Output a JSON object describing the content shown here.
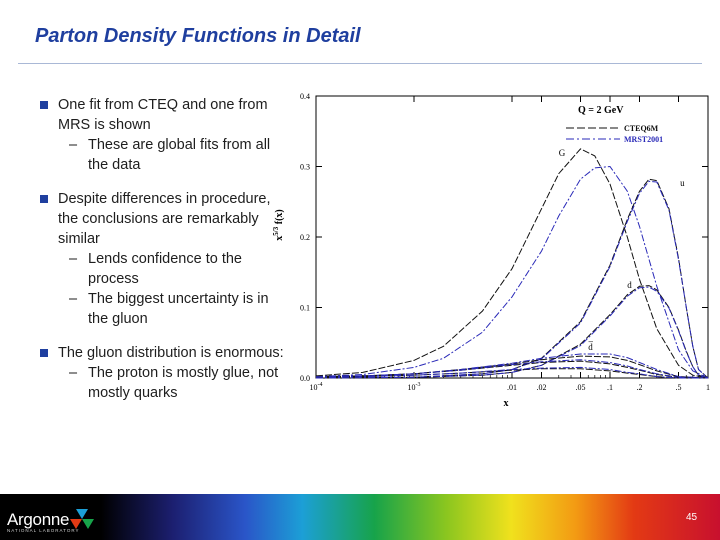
{
  "slide": {
    "title": "Parton Density Functions in Detail",
    "page_number": "45"
  },
  "bullets": [
    {
      "text": "One fit from CTEQ and one from MRS is shown",
      "subs": [
        "These are global fits from all the data"
      ]
    },
    {
      "text": "Despite differences in procedure, the conclusions are remarkably similar",
      "subs": [
        "Lends confidence to the process",
        "The biggest uncertainty is in the gluon"
      ]
    },
    {
      "text": "The gluon distribution is enormous:",
      "subs": [
        "The proton is mostly glue, not mostly quarks"
      ]
    }
  ],
  "footer": {
    "logo_text": "Argonne",
    "logo_sub": "NATIONAL LABORATORY"
  },
  "colors": {
    "title": "#1f3f9f",
    "bullet": "#1f3f9f",
    "cteq": "#111111",
    "mrst": "#2a2ab8"
  },
  "chart_data": {
    "type": "line",
    "annotation": "Q = 2 GeV",
    "xlabel": "x",
    "ylabel": "x^{5/3} f(x)",
    "ylabel_main": "x",
    "ylabel_sup": "5/3",
    "ylabel_tail": "f(x)",
    "xscale": "log",
    "xlim": [
      0.0001,
      1
    ],
    "ylim": [
      0,
      0.4
    ],
    "yticks": [
      {
        "value": 0.0,
        "label": "0.0"
      },
      {
        "value": 0.1,
        "label": "0.1"
      },
      {
        "value": 0.2,
        "label": "0.2"
      },
      {
        "value": 0.3,
        "label": "0.3"
      },
      {
        "value": 0.4,
        "label": "0.4"
      }
    ],
    "xticks": [
      {
        "value": 0.0001,
        "label": "10",
        "sup": "-4"
      },
      {
        "value": 0.001,
        "label": "10",
        "sup": "-3"
      },
      {
        "value": 0.01,
        "label": ".01"
      },
      {
        "value": 0.02,
        "label": ".02"
      },
      {
        "value": 0.05,
        "label": ".05"
      },
      {
        "value": 0.1,
        "label": ".1"
      },
      {
        "value": 0.2,
        "label": ".2"
      },
      {
        "value": 0.5,
        "label": ".5"
      },
      {
        "value": 1.0,
        "label": "1"
      }
    ],
    "legend": [
      {
        "name": "CTEQ6M",
        "style": "dashed",
        "color": "#111111"
      },
      {
        "name": "MRST2001",
        "style": "dashdot",
        "color": "#2a2ab8"
      }
    ],
    "legend_position": "top-right",
    "series": [
      {
        "name": "G (CTEQ6M)",
        "label": "G",
        "label_x": 0.03,
        "label_y": 0.315,
        "color": "#111111",
        "style": "dashed",
        "x": [
          0.0001,
          0.0003,
          0.001,
          0.002,
          0.005,
          0.01,
          0.02,
          0.03,
          0.05,
          0.07,
          0.1,
          0.15,
          0.2,
          0.3,
          0.5,
          0.7,
          1.0
        ],
        "y": [
          0.003,
          0.008,
          0.025,
          0.045,
          0.095,
          0.155,
          0.24,
          0.29,
          0.325,
          0.315,
          0.275,
          0.2,
          0.14,
          0.07,
          0.018,
          0.004,
          0.0
        ]
      },
      {
        "name": "G (MRST2001)",
        "label": "",
        "color": "#2a2ab8",
        "style": "dashdot",
        "x": [
          0.0001,
          0.0003,
          0.001,
          0.002,
          0.005,
          0.01,
          0.02,
          0.03,
          0.05,
          0.07,
          0.1,
          0.15,
          0.2,
          0.3,
          0.5,
          0.7,
          1.0
        ],
        "y": [
          0.002,
          0.005,
          0.015,
          0.028,
          0.065,
          0.115,
          0.18,
          0.23,
          0.282,
          0.298,
          0.3,
          0.265,
          0.215,
          0.13,
          0.04,
          0.01,
          0.0
        ]
      },
      {
        "name": "u (CTEQ6M)",
        "label": "u",
        "label_x": 0.52,
        "label_y": 0.272,
        "color": "#111111",
        "style": "dashed",
        "x": [
          0.0001,
          0.001,
          0.005,
          0.01,
          0.02,
          0.05,
          0.1,
          0.15,
          0.2,
          0.25,
          0.3,
          0.4,
          0.5,
          0.6,
          0.7,
          0.8,
          1.0
        ],
        "y": [
          0.0,
          0.001,
          0.006,
          0.012,
          0.028,
          0.08,
          0.16,
          0.225,
          0.265,
          0.282,
          0.28,
          0.24,
          0.17,
          0.1,
          0.045,
          0.012,
          0.0
        ]
      },
      {
        "name": "u (MRST2001)",
        "label": "",
        "color": "#2a2ab8",
        "style": "dashdot",
        "x": [
          0.0001,
          0.001,
          0.005,
          0.01,
          0.02,
          0.05,
          0.1,
          0.15,
          0.2,
          0.25,
          0.3,
          0.4,
          0.5,
          0.6,
          0.7,
          0.8,
          1.0
        ],
        "y": [
          0.0,
          0.001,
          0.006,
          0.012,
          0.027,
          0.078,
          0.158,
          0.222,
          0.262,
          0.279,
          0.278,
          0.238,
          0.168,
          0.1,
          0.045,
          0.012,
          0.0
        ]
      },
      {
        "name": "d (CTEQ6M)",
        "label": "d",
        "label_x": 0.15,
        "label_y": 0.128,
        "color": "#111111",
        "style": "dashed",
        "x": [
          0.0001,
          0.001,
          0.005,
          0.01,
          0.02,
          0.05,
          0.1,
          0.15,
          0.2,
          0.25,
          0.3,
          0.4,
          0.5,
          0.6,
          0.7,
          0.8,
          1.0
        ],
        "y": [
          0.0,
          0.001,
          0.004,
          0.008,
          0.018,
          0.048,
          0.09,
          0.118,
          0.13,
          0.131,
          0.125,
          0.1,
          0.068,
          0.038,
          0.016,
          0.004,
          0.0
        ]
      },
      {
        "name": "d (MRST2001)",
        "label": "",
        "color": "#2a2ab8",
        "style": "dashdot",
        "x": [
          0.0001,
          0.001,
          0.005,
          0.01,
          0.02,
          0.05,
          0.1,
          0.15,
          0.2,
          0.25,
          0.3,
          0.4,
          0.5,
          0.6,
          0.7,
          0.8,
          1.0
        ],
        "y": [
          0.0,
          0.001,
          0.004,
          0.008,
          0.018,
          0.046,
          0.088,
          0.116,
          0.128,
          0.129,
          0.123,
          0.099,
          0.067,
          0.037,
          0.016,
          0.004,
          0.0
        ]
      },
      {
        "name": "dbar (CTEQ6M)",
        "label": "d̅",
        "label_x": 0.06,
        "label_y": 0.04,
        "color": "#111111",
        "style": "dashed",
        "x": [
          0.0001,
          0.0003,
          0.001,
          0.003,
          0.01,
          0.02,
          0.05,
          0.1,
          0.15,
          0.2,
          0.3,
          0.5,
          1.0
        ],
        "y": [
          0.002,
          0.003,
          0.006,
          0.012,
          0.02,
          0.026,
          0.031,
          0.03,
          0.025,
          0.019,
          0.01,
          0.002,
          0.0
        ]
      },
      {
        "name": "dbar (MRST2001)",
        "label": "",
        "color": "#2a2ab8",
        "style": "dashdot",
        "x": [
          0.0001,
          0.0003,
          0.001,
          0.003,
          0.01,
          0.02,
          0.05,
          0.1,
          0.15,
          0.2,
          0.3,
          0.5,
          1.0
        ],
        "y": [
          0.002,
          0.003,
          0.006,
          0.012,
          0.021,
          0.028,
          0.034,
          0.034,
          0.029,
          0.022,
          0.012,
          0.002,
          0.0
        ]
      },
      {
        "name": "ubar (CTEQ6M)",
        "label": "",
        "color": "#111111",
        "style": "dashed",
        "x": [
          0.0001,
          0.0003,
          0.001,
          0.003,
          0.01,
          0.02,
          0.05,
          0.1,
          0.15,
          0.2,
          0.3,
          0.5,
          1.0
        ],
        "y": [
          0.002,
          0.003,
          0.006,
          0.011,
          0.018,
          0.022,
          0.024,
          0.02,
          0.015,
          0.011,
          0.005,
          0.001,
          0.0
        ]
      },
      {
        "name": "ubar (MRST2001)",
        "label": "",
        "color": "#2a2ab8",
        "style": "dashdot",
        "x": [
          0.0001,
          0.0003,
          0.001,
          0.003,
          0.01,
          0.02,
          0.05,
          0.1,
          0.15,
          0.2,
          0.3,
          0.5,
          1.0
        ],
        "y": [
          0.002,
          0.003,
          0.006,
          0.011,
          0.019,
          0.023,
          0.026,
          0.022,
          0.017,
          0.012,
          0.006,
          0.001,
          0.0
        ]
      },
      {
        "name": "s (CTEQ6M)",
        "label": "",
        "color": "#111111",
        "style": "dashed",
        "x": [
          0.0001,
          0.0003,
          0.001,
          0.003,
          0.01,
          0.02,
          0.05,
          0.1,
          0.15,
          0.2,
          0.3,
          0.5,
          1.0
        ],
        "y": [
          0.001,
          0.002,
          0.004,
          0.007,
          0.011,
          0.013,
          0.013,
          0.01,
          0.007,
          0.005,
          0.002,
          0.0,
          0.0
        ]
      },
      {
        "name": "s (MRST2001)",
        "label": "",
        "color": "#2a2ab8",
        "style": "dashdot",
        "x": [
          0.0001,
          0.0003,
          0.001,
          0.003,
          0.01,
          0.02,
          0.05,
          0.1,
          0.15,
          0.2,
          0.3,
          0.5,
          1.0
        ],
        "y": [
          0.001,
          0.002,
          0.004,
          0.007,
          0.012,
          0.014,
          0.015,
          0.012,
          0.008,
          0.006,
          0.002,
          0.0,
          0.0
        ]
      }
    ]
  }
}
